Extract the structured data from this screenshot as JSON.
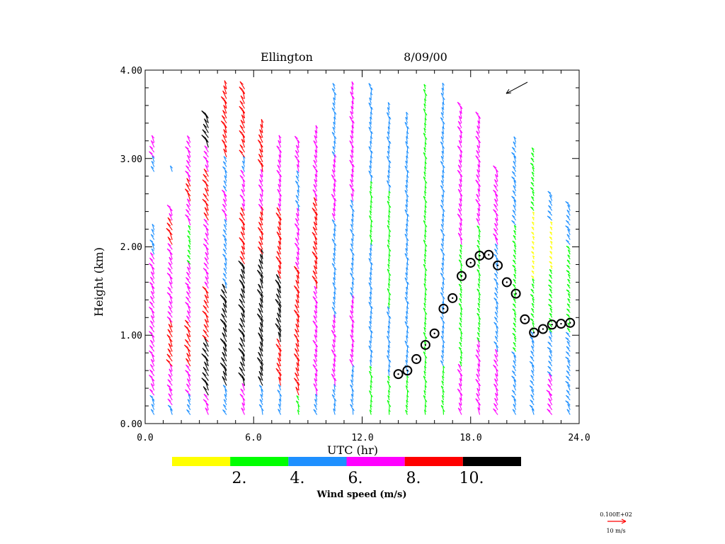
{
  "chart_data": {
    "type": "scatter",
    "subtype": "wind-profiler-time-height",
    "title": "Ellington",
    "date": "8/09/00",
    "xlabel": "UTC (hr)",
    "ylabel": "Height (km)",
    "xlim": [
      0,
      24
    ],
    "ylim": [
      0,
      4
    ],
    "xticks": [
      "0.0",
      "6.0",
      "12.0",
      "18.0",
      "24.0"
    ],
    "xtick_values": [
      0,
      6,
      12,
      18,
      24
    ],
    "yticks": [
      "0.00",
      "1.00",
      "2.00",
      "3.00",
      "4.00"
    ],
    "ytick_values": [
      0,
      1,
      2,
      3,
      4
    ],
    "colorbar": {
      "label": "Wind speed (m/s)",
      "colors": [
        "#ffff00",
        "#00ff00",
        "#1e90ff",
        "#ff00ff",
        "#ff0000",
        "#000000"
      ],
      "tick_labels": [
        "2.",
        "4.",
        "6.",
        "8.",
        "10."
      ]
    },
    "reference_vector": {
      "scale_text": "0.100E+02",
      "label": "10 m/s",
      "color": "#ff0000"
    },
    "boundary_layer_height": {
      "name": "mixing height (circles)",
      "x": [
        14.0,
        14.5,
        15.0,
        15.5,
        16.0,
        16.5,
        17.0,
        17.5,
        18.0,
        18.5,
        19.0,
        19.5,
        20.0,
        20.5,
        21.0,
        21.5,
        22.0,
        22.5,
        23.0,
        23.5
      ],
      "y": [
        0.56,
        0.6,
        0.73,
        0.89,
        1.02,
        1.3,
        1.42,
        1.67,
        1.82,
        1.9,
        1.91,
        1.79,
        1.6,
        1.47,
        1.18,
        1.03,
        1.07,
        1.12,
        1.13,
        1.14
      ]
    },
    "wind_columns_note": "speed class per height segment: 0=0-2,1=2-4,2=4-6,3=6-8,4=8-10,5=>10 m/s; -1 = no data",
    "wind_columns": [
      {
        "hour": 0.5,
        "dir": 150,
        "segs": [
          [
            0.1,
            2
          ],
          [
            0.3,
            3
          ],
          [
            1.9,
            2
          ],
          [
            2.2,
            -1
          ],
          [
            2.8,
            2
          ],
          [
            3.0,
            3
          ],
          [
            3.2,
            -1
          ]
        ]
      },
      {
        "hour": 1.5,
        "dir": 150,
        "segs": [
          [
            0.1,
            2
          ],
          [
            0.2,
            3
          ],
          [
            0.6,
            4
          ],
          [
            1.1,
            3
          ],
          [
            2.0,
            4
          ],
          [
            2.3,
            3
          ],
          [
            2.45,
            -1
          ],
          [
            2.8,
            2
          ],
          [
            2.9,
            -1
          ]
        ]
      },
      {
        "hour": 2.5,
        "dir": 150,
        "segs": [
          [
            0.1,
            2
          ],
          [
            0.3,
            3
          ],
          [
            0.6,
            4
          ],
          [
            1.1,
            3
          ],
          [
            1.8,
            1
          ],
          [
            2.2,
            3
          ],
          [
            2.5,
            4
          ],
          [
            2.7,
            3
          ],
          [
            3.2,
            -1
          ]
        ]
      },
      {
        "hour": 3.5,
        "dir": 150,
        "segs": [
          [
            0.1,
            3
          ],
          [
            0.3,
            5
          ],
          [
            0.9,
            4
          ],
          [
            1.5,
            3
          ],
          [
            2.3,
            4
          ],
          [
            2.8,
            3
          ],
          [
            3.1,
            5
          ],
          [
            3.5,
            -1
          ]
        ]
      },
      {
        "hour": 4.5,
        "dir": 155,
        "segs": [
          [
            0.1,
            2
          ],
          [
            0.4,
            5
          ],
          [
            1.0,
            5
          ],
          [
            1.5,
            2
          ],
          [
            2.3,
            3
          ],
          [
            2.6,
            2
          ],
          [
            3.0,
            4
          ],
          [
            3.8,
            -1
          ]
        ]
      },
      {
        "hour": 5.5,
        "dir": 155,
        "segs": [
          [
            0.1,
            3
          ],
          [
            0.4,
            5
          ],
          [
            1.8,
            4
          ],
          [
            2.4,
            3
          ],
          [
            2.8,
            2
          ],
          [
            3.0,
            4
          ],
          [
            3.8,
            -1
          ]
        ]
      },
      {
        "hour": 6.5,
        "dir": 160,
        "segs": [
          [
            0.1,
            2
          ],
          [
            0.4,
            5
          ],
          [
            1.9,
            4
          ],
          [
            2.4,
            3
          ],
          [
            2.8,
            4
          ],
          [
            3.4,
            -1
          ]
        ]
      },
      {
        "hour": 7.5,
        "dir": 160,
        "segs": [
          [
            0.1,
            2
          ],
          [
            0.4,
            4
          ],
          [
            0.9,
            5
          ],
          [
            1.6,
            4
          ],
          [
            2.4,
            3
          ],
          [
            3.2,
            -1
          ]
        ]
      },
      {
        "hour": 8.5,
        "dir": 160,
        "segs": [
          [
            0.1,
            1
          ],
          [
            0.3,
            4
          ],
          [
            1.7,
            3
          ],
          [
            2.4,
            2
          ],
          [
            2.8,
            3
          ],
          [
            3.2,
            -1
          ]
        ]
      },
      {
        "hour": 9.5,
        "dir": 160,
        "segs": [
          [
            0.1,
            2
          ],
          [
            0.3,
            3
          ],
          [
            1.5,
            4
          ],
          [
            2.5,
            3
          ],
          [
            3.3,
            -1
          ]
        ]
      },
      {
        "hour": 10.5,
        "dir": 165,
        "segs": [
          [
            0.1,
            2
          ],
          [
            0.4,
            3
          ],
          [
            1.2,
            2
          ],
          [
            2.3,
            3
          ],
          [
            3.0,
            2
          ],
          [
            3.8,
            -1
          ]
        ]
      },
      {
        "hour": 11.5,
        "dir": 165,
        "segs": [
          [
            0.1,
            2
          ],
          [
            0.6,
            3
          ],
          [
            1.4,
            2
          ],
          [
            2.5,
            3
          ],
          [
            3.8,
            -1
          ]
        ]
      },
      {
        "hour": 12.5,
        "dir": 170,
        "segs": [
          [
            0.1,
            1
          ],
          [
            0.6,
            2
          ],
          [
            2.0,
            1
          ],
          [
            2.7,
            2
          ],
          [
            3.8,
            -1
          ]
        ]
      },
      {
        "hour": 13.5,
        "dir": 170,
        "segs": [
          [
            0.1,
            1
          ],
          [
            0.5,
            2
          ],
          [
            1.3,
            1
          ],
          [
            2.6,
            2
          ],
          [
            3.6,
            -1
          ]
        ]
      },
      {
        "hour": 14.5,
        "dir": 170,
        "segs": [
          [
            0.1,
            1
          ],
          [
            0.5,
            2
          ],
          [
            3.5,
            -1
          ]
        ]
      },
      {
        "hour": 15.5,
        "dir": 170,
        "segs": [
          [
            0.1,
            1
          ],
          [
            3.8,
            -1
          ]
        ]
      },
      {
        "hour": 16.5,
        "dir": 165,
        "segs": [
          [
            0.1,
            1
          ],
          [
            0.6,
            2
          ],
          [
            3.8,
            -1
          ]
        ]
      },
      {
        "hour": 17.5,
        "dir": 160,
        "segs": [
          [
            0.1,
            3
          ],
          [
            0.6,
            1
          ],
          [
            2.0,
            3
          ],
          [
            3.6,
            -1
          ]
        ]
      },
      {
        "hour": 18.5,
        "dir": 160,
        "segs": [
          [
            0.1,
            3
          ],
          [
            0.9,
            1
          ],
          [
            2.2,
            3
          ],
          [
            3.5,
            -1
          ]
        ]
      },
      {
        "hour": 19.5,
        "dir": 155,
        "segs": [
          [
            0.1,
            3
          ],
          [
            0.8,
            2
          ],
          [
            2.0,
            3
          ],
          [
            2.9,
            -1
          ]
        ]
      },
      {
        "hour": 20.5,
        "dir": 150,
        "segs": [
          [
            0.1,
            2
          ],
          [
            0.8,
            1
          ],
          [
            2.2,
            2
          ],
          [
            3.2,
            -1
          ]
        ]
      },
      {
        "hour": 21.5,
        "dir": 150,
        "segs": [
          [
            0.1,
            2
          ],
          [
            1.0,
            1
          ],
          [
            1.6,
            0
          ],
          [
            2.4,
            1
          ],
          [
            3.1,
            -1
          ]
        ]
      },
      {
        "hour": 22.5,
        "dir": 145,
        "segs": [
          [
            0.1,
            3
          ],
          [
            0.5,
            2
          ],
          [
            1.0,
            1
          ],
          [
            1.7,
            0
          ],
          [
            2.3,
            2
          ],
          [
            2.6,
            -1
          ]
        ]
      },
      {
        "hour": 23.5,
        "dir": 145,
        "segs": [
          [
            0.1,
            2
          ],
          [
            1.0,
            1
          ],
          [
            2.0,
            2
          ],
          [
            2.5,
            -1
          ]
        ]
      }
    ]
  }
}
